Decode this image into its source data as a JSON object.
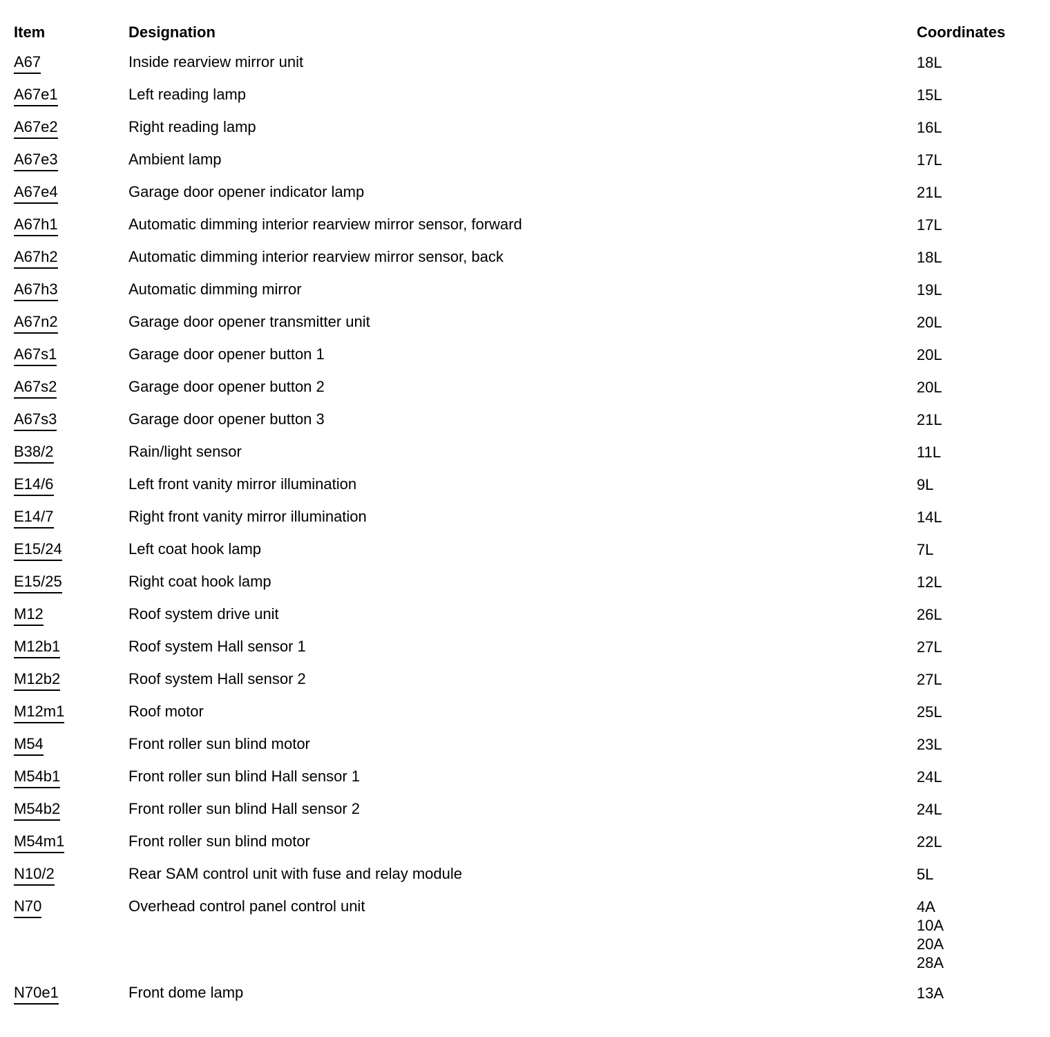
{
  "table": {
    "headers": {
      "item": "Item",
      "designation": "Designation",
      "coordinates": "Coordinates"
    },
    "rows": [
      {
        "item": "A67",
        "designation": "Inside rearview mirror unit",
        "coordinates": [
          "18L"
        ]
      },
      {
        "item": "A67e1",
        "designation": "Left reading lamp",
        "coordinates": [
          "15L"
        ]
      },
      {
        "item": "A67e2",
        "designation": "Right reading lamp",
        "coordinates": [
          "16L"
        ]
      },
      {
        "item": "A67e3",
        "designation": "Ambient lamp",
        "coordinates": [
          "17L"
        ]
      },
      {
        "item": "A67e4",
        "designation": "Garage door opener indicator lamp",
        "coordinates": [
          "21L"
        ]
      },
      {
        "item": "A67h1",
        "designation": "Automatic dimming interior rearview mirror sensor, forward",
        "coordinates": [
          "17L"
        ]
      },
      {
        "item": "A67h2",
        "designation": "Automatic dimming interior rearview mirror sensor, back",
        "coordinates": [
          "18L"
        ]
      },
      {
        "item": "A67h3",
        "designation": "Automatic dimming mirror",
        "coordinates": [
          "19L"
        ]
      },
      {
        "item": "A67n2",
        "designation": "Garage door opener transmitter unit",
        "coordinates": [
          "20L"
        ]
      },
      {
        "item": "A67s1",
        "designation": "Garage door opener button 1",
        "coordinates": [
          "20L"
        ]
      },
      {
        "item": "A67s2",
        "designation": "Garage door opener button 2",
        "coordinates": [
          "20L"
        ]
      },
      {
        "item": "A67s3",
        "designation": "Garage door opener button 3",
        "coordinates": [
          "21L"
        ]
      },
      {
        "item": "B38/2",
        "designation": "Rain/light sensor",
        "coordinates": [
          "11L"
        ]
      },
      {
        "item": "E14/6",
        "designation": "Left front vanity mirror illumination",
        "coordinates": [
          "9L"
        ]
      },
      {
        "item": "E14/7",
        "designation": "Right front vanity mirror illumination",
        "coordinates": [
          "14L"
        ]
      },
      {
        "item": "E15/24",
        "designation": "Left coat hook lamp",
        "coordinates": [
          "7L"
        ]
      },
      {
        "item": "E15/25",
        "designation": "Right coat hook lamp",
        "coordinates": [
          "12L"
        ]
      },
      {
        "item": "M12",
        "designation": "Roof system drive unit",
        "coordinates": [
          "26L"
        ]
      },
      {
        "item": "M12b1",
        "designation": "Roof system Hall sensor 1",
        "coordinates": [
          "27L"
        ]
      },
      {
        "item": "M12b2",
        "designation": "Roof system Hall sensor 2",
        "coordinates": [
          "27L"
        ]
      },
      {
        "item": "M12m1",
        "designation": "Roof motor",
        "coordinates": [
          "25L"
        ]
      },
      {
        "item": "M54",
        "designation": "Front roller sun blind motor",
        "coordinates": [
          "23L"
        ]
      },
      {
        "item": "M54b1",
        "designation": "Front roller sun blind Hall sensor 1",
        "coordinates": [
          "24L"
        ]
      },
      {
        "item": "M54b2",
        "designation": "Front roller sun blind Hall sensor 2",
        "coordinates": [
          "24L"
        ]
      },
      {
        "item": "M54m1",
        "designation": "Front roller sun blind motor",
        "coordinates": [
          "22L"
        ]
      },
      {
        "item": "N10/2",
        "designation": "Rear SAM control unit with fuse and relay module",
        "coordinates": [
          "5L"
        ]
      },
      {
        "item": "N70",
        "designation": "Overhead control panel control unit",
        "coordinates": [
          "4A",
          "10A",
          "20A",
          "28A"
        ]
      },
      {
        "item": "N70e1",
        "designation": "Front dome lamp",
        "coordinates": [
          "13A"
        ]
      }
    ]
  }
}
